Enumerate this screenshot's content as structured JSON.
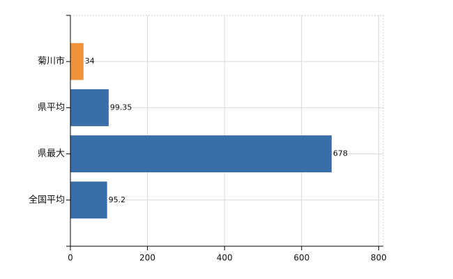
{
  "chart_data": {
    "type": "hbar",
    "categories": [
      "菊川市",
      "県平均",
      "県最大",
      "全国平均"
    ],
    "values": [
      34,
      99.35,
      678,
      95.2
    ],
    "colors": [
      "#f0923a",
      "#3a6ea8",
      "#3a6ea8",
      "#3a6ea8"
    ],
    "xlim": [
      0,
      812
    ],
    "xticks": [
      0,
      200,
      400,
      600,
      800
    ],
    "grid": true
  }
}
